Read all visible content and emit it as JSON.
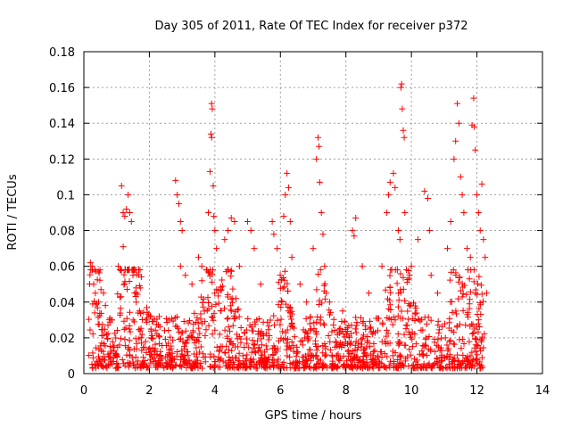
{
  "chart_data": {
    "type": "scatter",
    "title": "Day 305 of 2011, Rate Of TEC Index for receiver p372",
    "xlabel": "GPS time / hours",
    "ylabel": "ROTI / TECUs",
    "xlim": [
      0,
      14
    ],
    "ylim": [
      0,
      0.18
    ],
    "xticks": [
      {
        "value": 0,
        "label": "0"
      },
      {
        "value": 2,
        "label": "2"
      },
      {
        "value": 4,
        "label": "4"
      },
      {
        "value": 6,
        "label": "6"
      },
      {
        "value": 8,
        "label": "8"
      },
      {
        "value": 10,
        "label": "10"
      },
      {
        "value": 12,
        "label": "12"
      },
      {
        "value": 14,
        "label": "14"
      }
    ],
    "yticks": [
      {
        "value": 0,
        "label": "0"
      },
      {
        "value": 0.02,
        "label": "0.02"
      },
      {
        "value": 0.04,
        "label": "0.04"
      },
      {
        "value": 0.06,
        "label": "0.06"
      },
      {
        "value": 0.08,
        "label": "0.08"
      },
      {
        "value": 0.1,
        "label": "0.1"
      },
      {
        "value": 0.12,
        "label": "0.12"
      },
      {
        "value": 0.14,
        "label": "0.14"
      },
      {
        "value": 0.16,
        "label": "0.16"
      },
      {
        "value": 0.18,
        "label": "0.18"
      }
    ],
    "grid": true,
    "marker": "+",
    "color": "#ff0000",
    "series": [
      {
        "points": [
          [
            0.2,
            0.062
          ],
          [
            0.25,
            0.06
          ],
          [
            0.3,
            0.05
          ],
          [
            0.35,
            0.045
          ],
          [
            0.45,
            0.04
          ],
          [
            0.6,
            0.045
          ],
          [
            0.85,
            0.03
          ],
          [
            1.05,
            0.06
          ],
          [
            1.1,
            0.058
          ],
          [
            1.15,
            0.105
          ],
          [
            1.2,
            0.09
          ],
          [
            1.25,
            0.088
          ],
          [
            1.3,
            0.092
          ],
          [
            1.35,
            0.1
          ],
          [
            1.4,
            0.09
          ],
          [
            1.45,
            0.085
          ],
          [
            1.2,
            0.071
          ],
          [
            1.5,
            0.055
          ],
          [
            1.55,
            0.045
          ],
          [
            1.6,
            0.04
          ],
          [
            1.7,
            0.035
          ],
          [
            1.9,
            0.03
          ],
          [
            2.3,
            0.032
          ],
          [
            2.6,
            0.03
          ],
          [
            2.8,
            0.108
          ],
          [
            2.85,
            0.1
          ],
          [
            2.9,
            0.095
          ],
          [
            2.95,
            0.085
          ],
          [
            3.0,
            0.08
          ],
          [
            2.95,
            0.06
          ],
          [
            3.1,
            0.055
          ],
          [
            3.3,
            0.05
          ],
          [
            3.5,
            0.065
          ],
          [
            3.6,
            0.06
          ],
          [
            3.8,
            0.09
          ],
          [
            3.85,
            0.113
          ],
          [
            3.9,
            0.151
          ],
          [
            3.92,
            0.148
          ],
          [
            3.88,
            0.134
          ],
          [
            3.9,
            0.132
          ],
          [
            3.95,
            0.105
          ],
          [
            3.97,
            0.088
          ],
          [
            4.0,
            0.08
          ],
          [
            4.05,
            0.07
          ],
          [
            4.3,
            0.075
          ],
          [
            4.4,
            0.08
          ],
          [
            4.5,
            0.087
          ],
          [
            4.6,
            0.085
          ],
          [
            4.75,
            0.06
          ],
          [
            5.0,
            0.085
          ],
          [
            5.1,
            0.08
          ],
          [
            5.2,
            0.07
          ],
          [
            5.4,
            0.05
          ],
          [
            5.75,
            0.085
          ],
          [
            5.8,
            0.078
          ],
          [
            5.9,
            0.07
          ],
          [
            6.1,
            0.088
          ],
          [
            6.15,
            0.1
          ],
          [
            6.2,
            0.112
          ],
          [
            6.25,
            0.104
          ],
          [
            6.3,
            0.085
          ],
          [
            6.35,
            0.065
          ],
          [
            6.6,
            0.05
          ],
          [
            6.8,
            0.04
          ],
          [
            7.0,
            0.07
          ],
          [
            7.1,
            0.12
          ],
          [
            7.15,
            0.132
          ],
          [
            7.18,
            0.127
          ],
          [
            7.2,
            0.107
          ],
          [
            7.25,
            0.09
          ],
          [
            7.3,
            0.078
          ],
          [
            7.35,
            0.06
          ],
          [
            7.5,
            0.04
          ],
          [
            7.9,
            0.035
          ],
          [
            8.2,
            0.08
          ],
          [
            8.25,
            0.077
          ],
          [
            8.3,
            0.087
          ],
          [
            8.5,
            0.06
          ],
          [
            8.7,
            0.045
          ],
          [
            9.1,
            0.06
          ],
          [
            9.25,
            0.09
          ],
          [
            9.3,
            0.1
          ],
          [
            9.35,
            0.107
          ],
          [
            9.45,
            0.112
          ],
          [
            9.5,
            0.104
          ],
          [
            9.6,
            0.08
          ],
          [
            9.65,
            0.075
          ],
          [
            9.68,
            0.16
          ],
          [
            9.7,
            0.162
          ],
          [
            9.72,
            0.148
          ],
          [
            9.75,
            0.136
          ],
          [
            9.78,
            0.132
          ],
          [
            9.8,
            0.09
          ],
          [
            10.0,
            0.06
          ],
          [
            10.2,
            0.075
          ],
          [
            10.4,
            0.102
          ],
          [
            10.5,
            0.098
          ],
          [
            10.55,
            0.08
          ],
          [
            10.6,
            0.055
          ],
          [
            10.8,
            0.045
          ],
          [
            11.1,
            0.07
          ],
          [
            11.2,
            0.085
          ],
          [
            11.3,
            0.12
          ],
          [
            11.35,
            0.13
          ],
          [
            11.4,
            0.151
          ],
          [
            11.45,
            0.14
          ],
          [
            11.5,
            0.11
          ],
          [
            11.55,
            0.1
          ],
          [
            11.6,
            0.09
          ],
          [
            11.7,
            0.07
          ],
          [
            11.8,
            0.065
          ],
          [
            11.85,
            0.139
          ],
          [
            11.9,
            0.154
          ],
          [
            11.92,
            0.138
          ],
          [
            11.95,
            0.125
          ],
          [
            12.0,
            0.1
          ],
          [
            12.05,
            0.09
          ],
          [
            12.1,
            0.08
          ],
          [
            12.15,
            0.106
          ],
          [
            12.2,
            0.075
          ],
          [
            12.25,
            0.065
          ],
          [
            12.3,
            0.045
          ]
        ]
      }
    ]
  }
}
